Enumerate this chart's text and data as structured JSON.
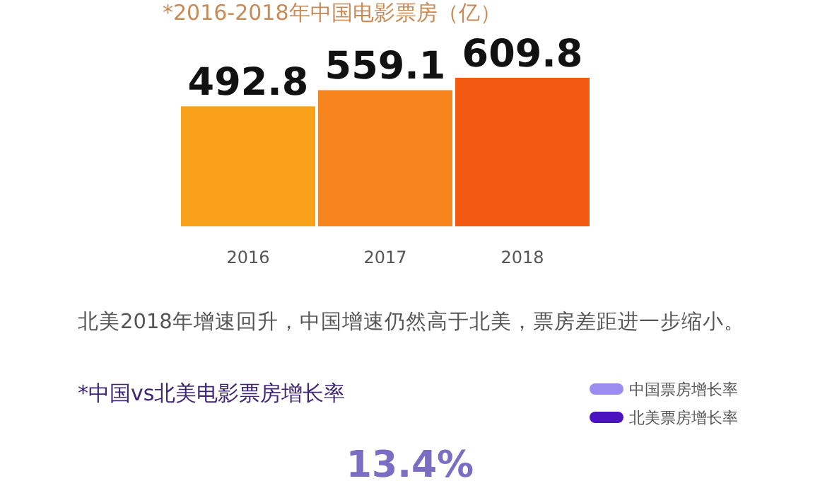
{
  "chart_data": [
    {
      "type": "bar",
      "title": "*2016-2018年中国电影票房（亿）",
      "categories": [
        "2016",
        "2017",
        "2018"
      ],
      "values": [
        492.8,
        559.1,
        609.8
      ],
      "colors": [
        "#f9a11b",
        "#f7841c",
        "#f25a12"
      ],
      "data_labels": true,
      "annotations": [
        "北美2018年增速回升，中国增速仍然高于北美，票房差距进一步缩小。"
      ]
    },
    {
      "type": "other",
      "title": "*中国vs北美电影票房增长率",
      "legend": "top right",
      "series": [
        {
          "name": "中国票房增长率",
          "color": "#9b8cf0"
        },
        {
          "name": "北美票房增长率",
          "color": "#4b12bf"
        }
      ],
      "annotations": [
        "13.4%"
      ]
    }
  ]
}
